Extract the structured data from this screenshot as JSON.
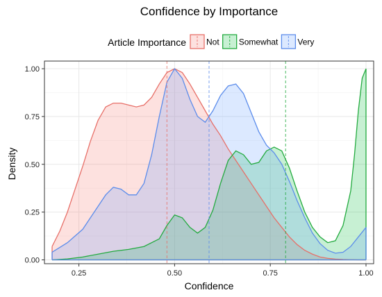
{
  "chart_data": {
    "type": "area",
    "title": "Confidence by Importance",
    "xlabel": "Confidence",
    "ylabel": "Density",
    "xlim": [
      0.16,
      1.02
    ],
    "ylim": [
      -0.02,
      1.04
    ],
    "x_ticks": [
      0.25,
      0.5,
      0.75,
      1.0
    ],
    "x_tick_labels": [
      "0.25",
      "0.50",
      "0.75",
      "1.00"
    ],
    "y_ticks": [
      0,
      0.25,
      0.5,
      0.75,
      1.0
    ],
    "y_tick_labels": [
      "0.00",
      "0.25",
      "0.50",
      "0.75",
      "1.00"
    ],
    "grid": true,
    "legend": {
      "title": "Article Importance",
      "position": "top",
      "entries": [
        "Not",
        "Somewhat",
        "Very"
      ]
    },
    "series": [
      {
        "name": "Not",
        "color": "#E76F68",
        "fill": "#F8766D",
        "mean": 0.48,
        "x": [
          0.18,
          0.2,
          0.22,
          0.24,
          0.26,
          0.28,
          0.3,
          0.32,
          0.34,
          0.36,
          0.38,
          0.4,
          0.42,
          0.44,
          0.46,
          0.48,
          0.5,
          0.52,
          0.54,
          0.56,
          0.58,
          0.6,
          0.62,
          0.64,
          0.66,
          0.68,
          0.7,
          0.72,
          0.74,
          0.76,
          0.78,
          0.8,
          0.82,
          0.84,
          0.86,
          0.88,
          0.9,
          0.92,
          0.94,
          0.96,
          0.98,
          1.0
        ],
        "y": [
          0.07,
          0.15,
          0.25,
          0.37,
          0.49,
          0.62,
          0.73,
          0.8,
          0.82,
          0.82,
          0.81,
          0.8,
          0.81,
          0.85,
          0.92,
          0.98,
          1.0,
          0.98,
          0.92,
          0.85,
          0.78,
          0.71,
          0.65,
          0.58,
          0.52,
          0.46,
          0.4,
          0.34,
          0.28,
          0.22,
          0.17,
          0.12,
          0.08,
          0.05,
          0.03,
          0.015,
          0.008,
          0.004,
          0.002,
          0.001,
          0.0,
          0.0
        ]
      },
      {
        "name": "Somewhat",
        "color": "#22AA3E",
        "fill": "#00BA38",
        "mean": 0.79,
        "x": [
          0.18,
          0.22,
          0.26,
          0.3,
          0.34,
          0.38,
          0.42,
          0.46,
          0.48,
          0.5,
          0.52,
          0.54,
          0.56,
          0.58,
          0.6,
          0.62,
          0.64,
          0.66,
          0.68,
          0.7,
          0.72,
          0.74,
          0.76,
          0.78,
          0.8,
          0.82,
          0.84,
          0.86,
          0.88,
          0.9,
          0.92,
          0.94,
          0.96,
          0.97,
          0.98,
          0.99,
          1.0
        ],
        "y": [
          0.0,
          0.005,
          0.015,
          0.03,
          0.045,
          0.055,
          0.07,
          0.11,
          0.18,
          0.235,
          0.22,
          0.17,
          0.14,
          0.17,
          0.26,
          0.4,
          0.52,
          0.57,
          0.55,
          0.5,
          0.51,
          0.57,
          0.59,
          0.57,
          0.48,
          0.36,
          0.25,
          0.17,
          0.12,
          0.09,
          0.1,
          0.18,
          0.36,
          0.55,
          0.78,
          0.95,
          1.0
        ]
      },
      {
        "name": "Very",
        "color": "#5B8CEB",
        "fill": "#619CFF",
        "mean": 0.59,
        "x": [
          0.18,
          0.22,
          0.26,
          0.3,
          0.32,
          0.34,
          0.36,
          0.38,
          0.4,
          0.42,
          0.44,
          0.46,
          0.48,
          0.5,
          0.52,
          0.54,
          0.56,
          0.58,
          0.6,
          0.62,
          0.64,
          0.66,
          0.68,
          0.7,
          0.72,
          0.74,
          0.76,
          0.78,
          0.8,
          0.82,
          0.84,
          0.86,
          0.88,
          0.9,
          0.92,
          0.94,
          0.96,
          0.98,
          1.0
        ],
        "y": [
          0.04,
          0.09,
          0.16,
          0.28,
          0.34,
          0.38,
          0.37,
          0.34,
          0.34,
          0.4,
          0.55,
          0.75,
          0.93,
          1.0,
          0.95,
          0.84,
          0.75,
          0.72,
          0.78,
          0.86,
          0.91,
          0.92,
          0.87,
          0.77,
          0.67,
          0.6,
          0.56,
          0.5,
          0.41,
          0.31,
          0.22,
          0.14,
          0.085,
          0.05,
          0.035,
          0.04,
          0.07,
          0.12,
          0.17
        ]
      }
    ]
  }
}
